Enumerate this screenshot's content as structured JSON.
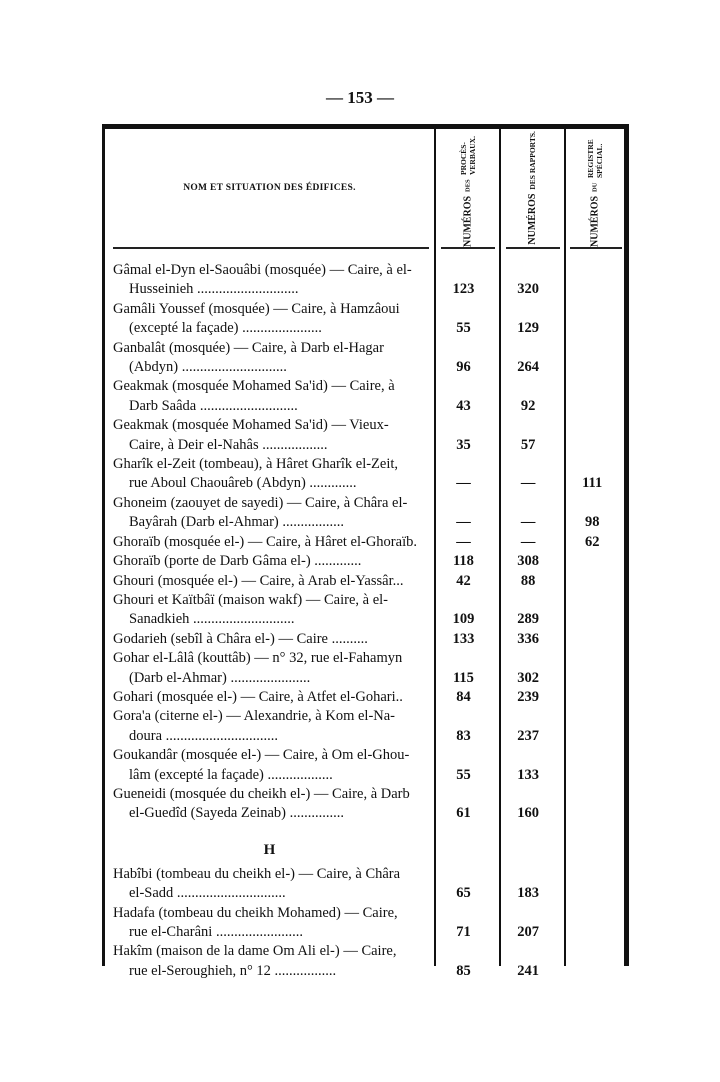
{
  "page_number": "— 153 —",
  "header": {
    "name_col": "NOM ET SITUATION DES ÉDIFICES.",
    "col_proces": [
      "NUMÉROS",
      "DES",
      "PROCÈS-VERBAUX."
    ],
    "col_rapports": [
      "NUMÉROS",
      "DES RAPPORTS."
    ],
    "col_registre": [
      "NUMÉROS",
      "DU",
      "REGISTRE SPÉCIAL."
    ]
  },
  "rows": [
    {
      "l1": "Gâmal el-Dyn el-Saouâbi (mosquée) — Caire, à el-",
      "l2": "Husseinieh ............................",
      "pv": "123",
      "rap": "320",
      "reg": ""
    },
    {
      "l1": "Gamâli Youssef (mosquée) — Caire, à Hamzâoui",
      "l2": "(excepté la façade) ......................",
      "pv": "55",
      "rap": "129",
      "reg": ""
    },
    {
      "l1": "Ganbalât (mosquée) — Caire, à Darb el-Hagar",
      "l2": "(Abdyn) .............................",
      "pv": "96",
      "rap": "264",
      "reg": ""
    },
    {
      "l1": "Geakmak (mosquée Mohamed Sa'id) — Caire, à",
      "l2": "Darb Saâda ...........................",
      "pv": "43",
      "rap": "92",
      "reg": ""
    },
    {
      "l1": "Geakmak (mosquée Mohamed Sa'id) — Vieux-",
      "l2": "Caire, à Deir el-Nahâs ..................",
      "pv": "35",
      "rap": "57",
      "reg": ""
    },
    {
      "l1": "Gharîk el-Zeit (tombeau), à Hâret Gharîk el-Zeit,",
      "l2": "rue Aboul Chaouâreb (Abdyn) .............",
      "pv": "—",
      "rap": "—",
      "reg": "111"
    },
    {
      "l1": "Ghoneim (zaouyet de sayedi) — Caire, à Châra el-",
      "l2": "Bayârah (Darb el-Ahmar) .................",
      "pv": "—",
      "rap": "—",
      "reg": "98"
    },
    {
      "l1": "Ghoraïb (mosquée el-) — Caire, à Hâret el-Ghoraïb.",
      "l2": "",
      "pv": "—",
      "rap": "—",
      "reg": "62"
    },
    {
      "l1": "Ghoraïb (porte de Darb Gâma el-) .............",
      "l2": "",
      "pv": "118",
      "rap": "308",
      "reg": ""
    },
    {
      "l1": "Ghouri (mosquée el-) — Caire, à Arab el-Yassâr...",
      "l2": "",
      "pv": "42",
      "rap": "88",
      "reg": ""
    },
    {
      "l1": "Ghouri et Kaïtbâï (maison wakf) — Caire, à el-",
      "l2": "Sanadkieh ............................",
      "pv": "109",
      "rap": "289",
      "reg": ""
    },
    {
      "l1": "Godarieh (sebîl à Châra el-) — Caire ..........",
      "l2": "",
      "pv": "133",
      "rap": "336",
      "reg": ""
    },
    {
      "l1": "Gohar el-Lâlâ (kouttâb) — n° 32, rue el-Fahamyn",
      "l2": "(Darb el-Ahmar) ......................",
      "pv": "115",
      "rap": "302",
      "reg": ""
    },
    {
      "l1": "Gohari (mosquée el-) — Caire, à Atfet el-Gohari..",
      "l2": "",
      "pv": "84",
      "rap": "239",
      "reg": ""
    },
    {
      "l1": "Gora'a (citerne el-) — Alexandrie, à Kom el-Na-",
      "l2": "doura ...............................",
      "pv": "83",
      "rap": "237",
      "reg": ""
    },
    {
      "l1": "Goukandâr (mosquée el-) — Caire, à Om el-Ghou-",
      "l2": "lâm (excepté la façade) ..................",
      "pv": "55",
      "rap": "133",
      "reg": ""
    },
    {
      "l1": "Gueneidi (mosquée du cheikh el-) — Caire, à Darb",
      "l2": "el-Guedîd (Sayeda Zeinab) ...............",
      "pv": "61",
      "rap": "160",
      "reg": ""
    }
  ],
  "section_h": "H",
  "rows_h": [
    {
      "l1": "Habîbi (tombeau du cheikh el-) — Caire, à Châra",
      "l2": "el-Sadd ..............................",
      "pv": "65",
      "rap": "183",
      "reg": ""
    },
    {
      "l1": "Hadafa (tombeau du cheikh Mohamed) — Caire,",
      "l2": "rue el-Charâni ........................",
      "pv": "71",
      "rap": "207",
      "reg": ""
    },
    {
      "l1": "Hakîm (maison de la dame Om Ali el-) — Caire,",
      "l2": "rue el-Seroughieh, n° 12 .................",
      "pv": "85",
      "rap": "241",
      "reg": ""
    }
  ]
}
